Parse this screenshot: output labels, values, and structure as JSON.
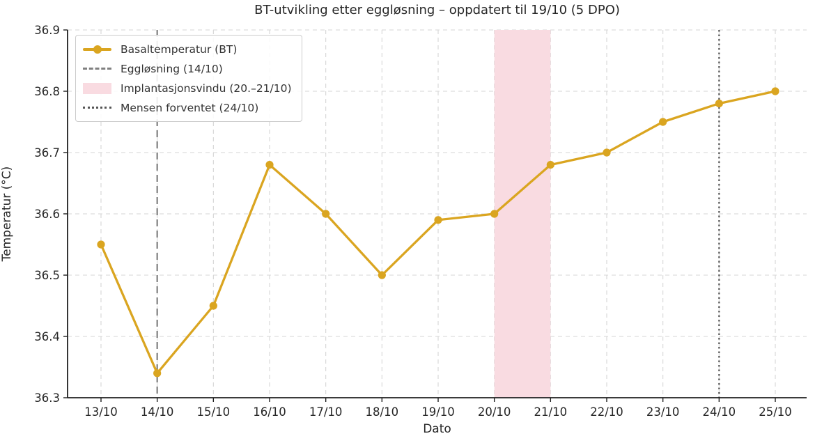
{
  "chart_data": {
    "type": "line",
    "title": "BT-utvikling etter eggløsning – oppdatert til 19/10 (5 DPO)",
    "xlabel": "Dato",
    "ylabel": "Temperatur (°C)",
    "categories": [
      "13/10",
      "14/10",
      "15/10",
      "16/10",
      "17/10",
      "18/10",
      "19/10",
      "20/10",
      "21/10",
      "22/10",
      "23/10",
      "24/10",
      "25/10"
    ],
    "series": [
      {
        "name": "Basaltemperatur (BT)",
        "values": [
          36.55,
          36.34,
          36.45,
          36.68,
          36.6,
          36.5,
          36.59,
          36.6,
          36.68,
          36.7,
          36.75,
          36.78,
          36.8
        ],
        "color": "#DAA520",
        "marker": "circle"
      }
    ],
    "ylim": [
      36.3,
      36.9
    ],
    "yticks": [
      36.3,
      36.4,
      36.5,
      36.6,
      36.7,
      36.8,
      36.9
    ],
    "ytick_decimals": 1,
    "grid": true,
    "grid_style": "dashed",
    "legend_position": "upper-left",
    "annotations": [
      {
        "kind": "vline",
        "at": "14/10",
        "style": "dashed",
        "color": "#808080",
        "label": "Eggløsning (14/10)"
      },
      {
        "kind": "vspan",
        "from": "20/10",
        "to": "21/10",
        "color": "#F9DBE1",
        "label": "Implantasjonsvindu (20.–21/10)"
      },
      {
        "kind": "vline",
        "at": "24/10",
        "style": "dotted",
        "color": "#555555",
        "label": "Mensen forventet (24/10)"
      }
    ],
    "legend": [
      {
        "label": "Basaltemperatur (BT)",
        "swatch": "line-marker",
        "color": "#DAA520"
      },
      {
        "label": "Eggløsning (14/10)",
        "swatch": "dashed-line",
        "color": "#808080"
      },
      {
        "label": "Implantasjonsvindu (20.–21/10)",
        "swatch": "patch",
        "color": "#F9DBE1"
      },
      {
        "label": "Mensen forventet (24/10)",
        "swatch": "dotted-line",
        "color": "#555555"
      }
    ]
  }
}
